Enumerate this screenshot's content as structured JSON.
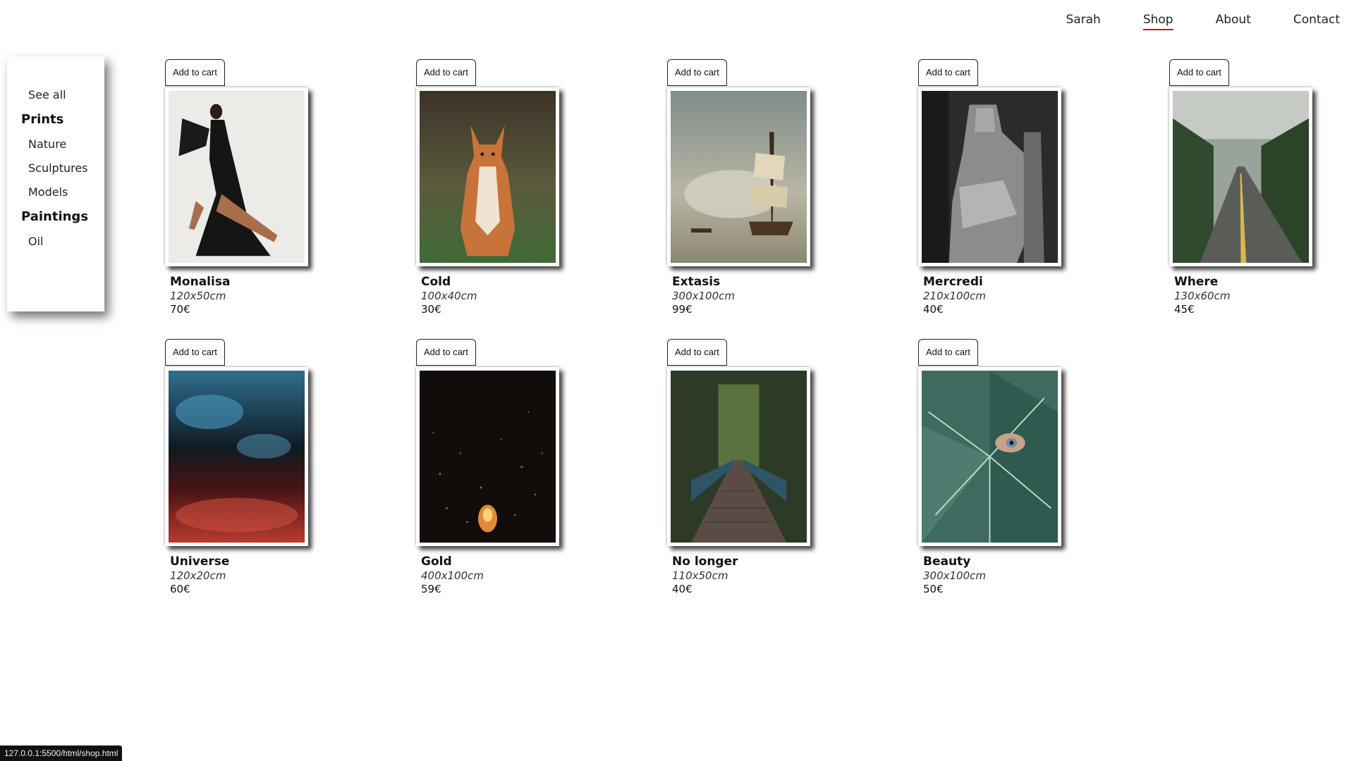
{
  "nav": {
    "items": [
      {
        "label": "Sarah",
        "active": false
      },
      {
        "label": "Shop",
        "active": true
      },
      {
        "label": "About",
        "active": false
      },
      {
        "label": "Contact",
        "active": false
      }
    ]
  },
  "sidebar": {
    "see_all": "See all",
    "prints": "Prints",
    "nature": "Nature",
    "sculptures": "Sculptures",
    "models": "Models",
    "paintings": "Paintings",
    "oil": "Oil"
  },
  "cart_label": "Add to cart",
  "products": [
    {
      "title": "Monalisa",
      "size": "120x50cm",
      "price": "70€"
    },
    {
      "title": "Cold",
      "size": "100x40cm",
      "price": "30€"
    },
    {
      "title": "Extasis",
      "size": "300x100cm",
      "price": "99€"
    },
    {
      "title": "Mercredi",
      "size": "210x100cm",
      "price": "40€"
    },
    {
      "title": "Where",
      "size": "130x60cm",
      "price": "45€"
    },
    {
      "title": "Universe",
      "size": "120x20cm",
      "price": "60€"
    },
    {
      "title": "Gold",
      "size": "400x100cm",
      "price": "59€"
    },
    {
      "title": "No longer",
      "size": "110x50cm",
      "price": "40€"
    },
    {
      "title": "Beauty",
      "size": "300x100cm",
      "price": "50€"
    }
  ],
  "status_url": "127.0.0.1:5500/html/shop.html",
  "colors": {
    "active_underline": "#c81414"
  }
}
